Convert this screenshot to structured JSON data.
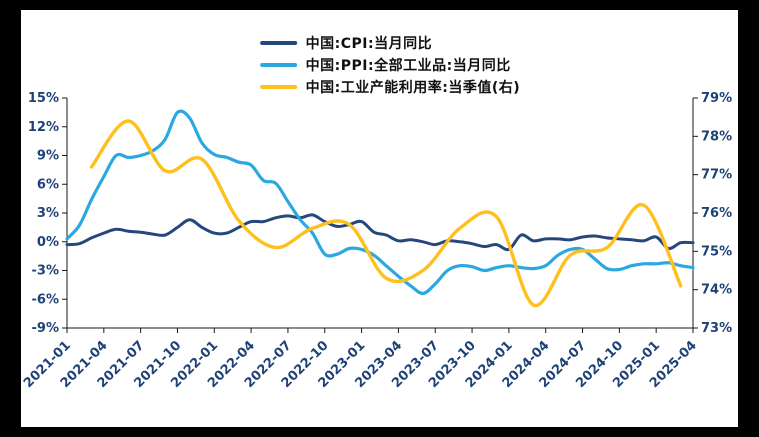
{
  "page": {
    "background_color": "#000000",
    "panel_color": "#ffffff",
    "axis_text_color": "#1E4177",
    "axis_line_color": "#1a1a1a"
  },
  "legend": [
    {
      "label": "中国:CPI:当月同比",
      "color": "#26477E"
    },
    {
      "label": "中国:PPI:全部工业品:当月同比",
      "color": "#2BA8E0"
    },
    {
      "label": "中国:工业产能利用率:当季值(右)",
      "color": "#FFC01E"
    }
  ],
  "chart_data": {
    "type": "line",
    "x_unit": "month",
    "x_range": [
      "2021-01",
      "2025-04"
    ],
    "x_point_count": 52,
    "x_tick_labels": [
      "2021-01",
      "2021-04",
      "2021-07",
      "2021-10",
      "2022-01",
      "2022-04",
      "2022-07",
      "2022-10",
      "2023-01",
      "2023-04",
      "2023-07",
      "2023-10",
      "2024-01",
      "2024-04",
      "2024-07",
      "2024-10",
      "2025-01",
      "2025-04"
    ],
    "x_tick_indices": [
      0,
      3,
      6,
      9,
      12,
      15,
      18,
      21,
      24,
      27,
      30,
      33,
      36,
      39,
      42,
      45,
      48,
      51
    ],
    "left_axis": {
      "min": -9,
      "max": 15,
      "tick_values": [
        15,
        12,
        9,
        6,
        3,
        0,
        -3,
        -6,
        -9
      ],
      "tick_labels": [
        "15%",
        "12%",
        "9%",
        "6%",
        "3%",
        "0%",
        "-3%",
        "-6%",
        "-9%"
      ]
    },
    "right_axis": {
      "min": 73,
      "max": 79,
      "tick_values": [
        79,
        78,
        77,
        76,
        75,
        74,
        73
      ],
      "tick_labels": [
        "79%",
        "78%",
        "77%",
        "76%",
        "75%",
        "74%",
        "73%"
      ]
    },
    "grid": false,
    "legend_position": "top-center",
    "series": [
      {
        "id": "cpi",
        "name": "中国:CPI:当月同比",
        "axis": "left",
        "color": "#26477E",
        "stroke_width": 3,
        "x_start_index": 0,
        "values": [
          -0.3,
          -0.2,
          0.4,
          0.9,
          1.3,
          1.1,
          1.0,
          0.8,
          0.7,
          1.5,
          2.3,
          1.5,
          0.9,
          0.9,
          1.5,
          2.1,
          2.1,
          2.5,
          2.7,
          2.5,
          2.8,
          2.1,
          1.6,
          1.8,
          2.1,
          1.0,
          0.7,
          0.1,
          0.2,
          0.0,
          -0.3,
          0.1,
          0.0,
          -0.2,
          -0.5,
          -0.3,
          -0.8,
          0.7,
          0.1,
          0.3,
          0.3,
          0.2,
          0.5,
          0.6,
          0.4,
          0.3,
          0.2,
          0.1,
          0.5,
          -0.7,
          -0.1,
          -0.1
        ]
      },
      {
        "id": "ppi",
        "name": "中国:PPI:全部工业品:当月同比",
        "axis": "left",
        "color": "#2BA8E0",
        "stroke_width": 3.2,
        "x_start_index": 0,
        "values": [
          0.3,
          1.7,
          4.4,
          6.8,
          9.0,
          8.8,
          9.0,
          9.5,
          10.7,
          13.5,
          12.9,
          10.3,
          9.1,
          8.8,
          8.3,
          8.0,
          6.4,
          6.1,
          4.2,
          2.3,
          0.9,
          -1.3,
          -1.3,
          -0.7,
          -0.8,
          -1.4,
          -2.5,
          -3.6,
          -4.6,
          -5.4,
          -4.4,
          -3.0,
          -2.5,
          -2.6,
          -3.0,
          -2.7,
          -2.5,
          -2.7,
          -2.8,
          -2.5,
          -1.4,
          -0.8,
          -0.8,
          -1.8,
          -2.8,
          -2.9,
          -2.5,
          -2.3,
          -2.3,
          -2.2,
          -2.5,
          -2.7
        ]
      },
      {
        "id": "capacity-utilization",
        "name": "中国:工业产能利用率:当季值(右)",
        "axis": "right",
        "color": "#FFC01E",
        "stroke_width": 3.4,
        "x_indices": [
          2,
          5,
          8,
          11,
          14,
          17,
          20,
          23,
          26,
          29,
          32,
          35,
          38,
          41,
          44,
          47,
          50
        ],
        "values": [
          77.2,
          78.4,
          77.1,
          77.4,
          75.8,
          75.1,
          75.6,
          75.7,
          74.3,
          74.5,
          75.6,
          75.9,
          73.6,
          74.9,
          75.1,
          76.2,
          74.1
        ]
      }
    ]
  }
}
